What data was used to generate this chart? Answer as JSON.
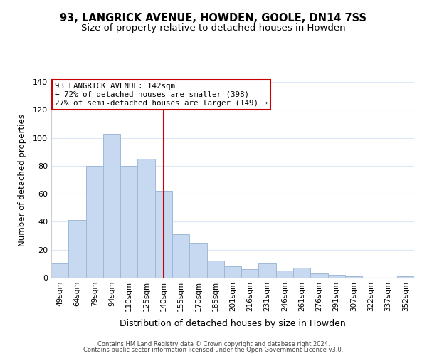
{
  "title": "93, LANGRICK AVENUE, HOWDEN, GOOLE, DN14 7SS",
  "subtitle": "Size of property relative to detached houses in Howden",
  "xlabel": "Distribution of detached houses by size in Howden",
  "ylabel": "Number of detached properties",
  "categories": [
    "49sqm",
    "64sqm",
    "79sqm",
    "94sqm",
    "110sqm",
    "125sqm",
    "140sqm",
    "155sqm",
    "170sqm",
    "185sqm",
    "201sqm",
    "216sqm",
    "231sqm",
    "246sqm",
    "261sqm",
    "276sqm",
    "291sqm",
    "307sqm",
    "322sqm",
    "337sqm",
    "352sqm"
  ],
  "values": [
    10,
    41,
    80,
    103,
    80,
    85,
    62,
    31,
    25,
    12,
    8,
    6,
    10,
    5,
    7,
    3,
    2,
    1,
    0,
    0,
    1
  ],
  "bar_color": "#c6d9f0",
  "bar_edge_color": "#a0b8d8",
  "vline_x": 6,
  "vline_color": "#cc0000",
  "annotation_line1": "93 LANGRICK AVENUE: 142sqm",
  "annotation_line2": "← 72% of detached houses are smaller (398)",
  "annotation_line3": "27% of semi-detached houses are larger (149) →",
  "annotation_box_edge": "#cc0000",
  "ylim": [
    0,
    140
  ],
  "yticks": [
    0,
    20,
    40,
    60,
    80,
    100,
    120,
    140
  ],
  "footer1": "Contains HM Land Registry data © Crown copyright and database right 2024.",
  "footer2": "Contains public sector information licensed under the Open Government Licence v3.0.",
  "background_color": "#ffffff",
  "grid_color": "#dce8f5",
  "title_fontsize": 10.5,
  "subtitle_fontsize": 9.5
}
